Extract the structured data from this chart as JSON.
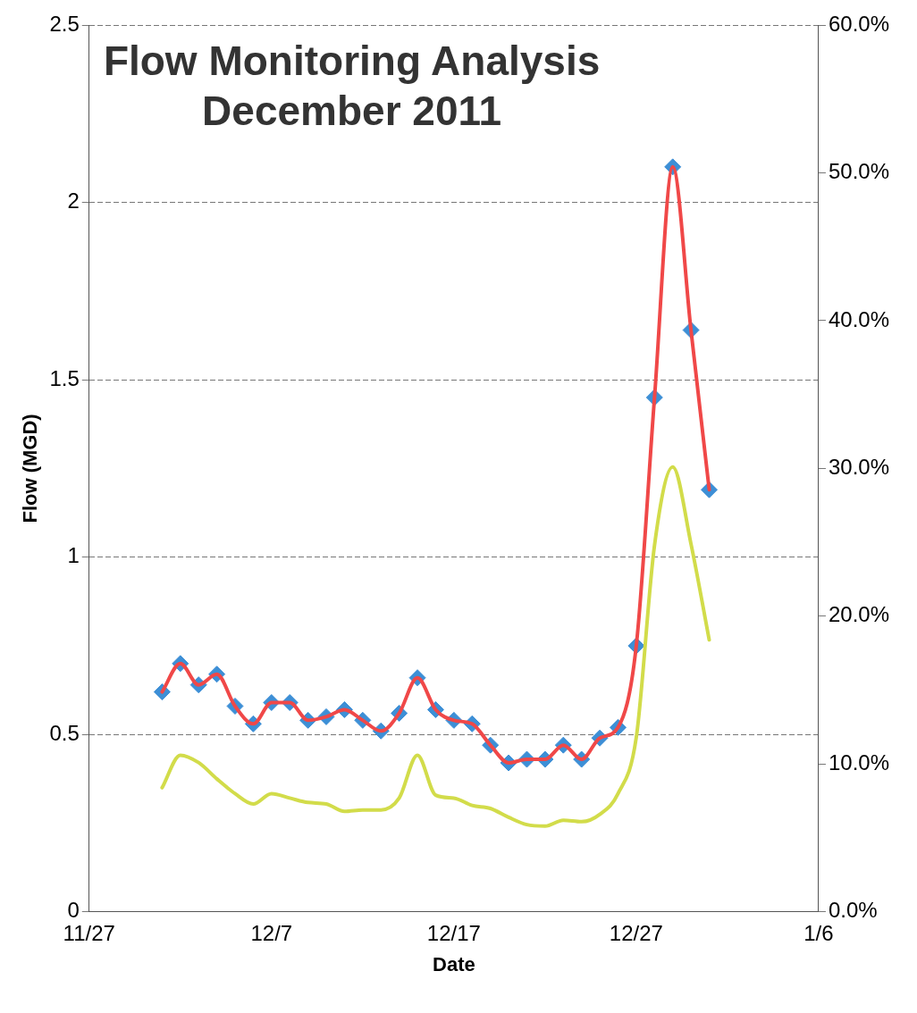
{
  "chart_data": {
    "type": "line",
    "title": "Flow Monitoring Analysis",
    "subtitle": "December 2011",
    "xlabel": "Date",
    "ylabel": "Flow (MGD)",
    "x": [
      "2011-12-01",
      "2011-12-02",
      "2011-12-03",
      "2011-12-04",
      "2011-12-05",
      "2011-12-06",
      "2011-12-07",
      "2011-12-08",
      "2011-12-09",
      "2011-12-10",
      "2011-12-11",
      "2011-12-12",
      "2011-12-13",
      "2011-12-14",
      "2011-12-15",
      "2011-12-16",
      "2011-12-17",
      "2011-12-18",
      "2011-12-19",
      "2011-12-20",
      "2011-12-21",
      "2011-12-22",
      "2011-12-23",
      "2011-12-24",
      "2011-12-25",
      "2011-12-26",
      "2011-12-27",
      "2011-12-28",
      "2011-12-29",
      "2011-12-30",
      "2011-12-31"
    ],
    "series": [
      {
        "type": "scatter",
        "marker": "diamond",
        "color": "#3d8fd6",
        "values": [
          0.62,
          0.7,
          0.64,
          0.67,
          0.58,
          0.53,
          0.59,
          0.59,
          0.54,
          0.55,
          0.57,
          0.54,
          0.51,
          0.56,
          0.66,
          0.57,
          0.54,
          0.53,
          0.47,
          0.42,
          0.43,
          0.43,
          0.47,
          0.43,
          0.49,
          0.52,
          0.75,
          1.45,
          2.1,
          1.64,
          1.19
        ]
      },
      {
        "type": "line",
        "marker": "none",
        "color": "#f04848",
        "values": [
          0.62,
          0.7,
          0.64,
          0.67,
          0.58,
          0.53,
          0.59,
          0.59,
          0.54,
          0.55,
          0.57,
          0.54,
          0.51,
          0.56,
          0.66,
          0.57,
          0.54,
          0.53,
          0.47,
          0.42,
          0.43,
          0.43,
          0.47,
          0.43,
          0.49,
          0.52,
          0.75,
          1.45,
          2.1,
          1.64,
          1.19
        ]
      },
      {
        "type": "line",
        "marker": "none",
        "axis": "y2",
        "color": "#d2dc4a",
        "values": [
          8.4,
          10.6,
          10.1,
          9.0,
          8.0,
          7.3,
          8.0,
          7.7,
          7.4,
          7.3,
          6.8,
          6.9,
          6.9,
          7.7,
          10.6,
          7.9,
          7.7,
          7.2,
          7.0,
          6.4,
          5.9,
          5.8,
          6.2,
          6.1,
          6.6,
          8.0,
          11.8,
          24.8,
          30.1,
          24.9,
          18.4
        ]
      }
    ],
    "xlim": [
      "2011-11-27",
      "2012-01-06"
    ],
    "xticks": [
      {
        "value": "2011-11-27",
        "label": "11/27"
      },
      {
        "value": "2011-12-07",
        "label": "12/7"
      },
      {
        "value": "2011-12-17",
        "label": "12/17"
      },
      {
        "value": "2011-12-27",
        "label": "12/27"
      },
      {
        "value": "2012-01-06",
        "label": "1/6"
      }
    ],
    "ylim": [
      0,
      2.5
    ],
    "yticks": [
      0,
      0.5,
      1,
      1.5,
      2,
      2.5
    ],
    "y2lim": [
      0,
      60
    ],
    "y2ticks": [
      {
        "value": 0,
        "label": "0.0%"
      },
      {
        "value": 10,
        "label": "10.0%"
      },
      {
        "value": 20,
        "label": "20.0%"
      },
      {
        "value": 30,
        "label": "30.0%"
      },
      {
        "value": 40,
        "label": "40.0%"
      },
      {
        "value": 50,
        "label": "50.0%"
      },
      {
        "value": 60,
        "label": "60.0%"
      }
    ],
    "grid": "y",
    "legend": false
  }
}
